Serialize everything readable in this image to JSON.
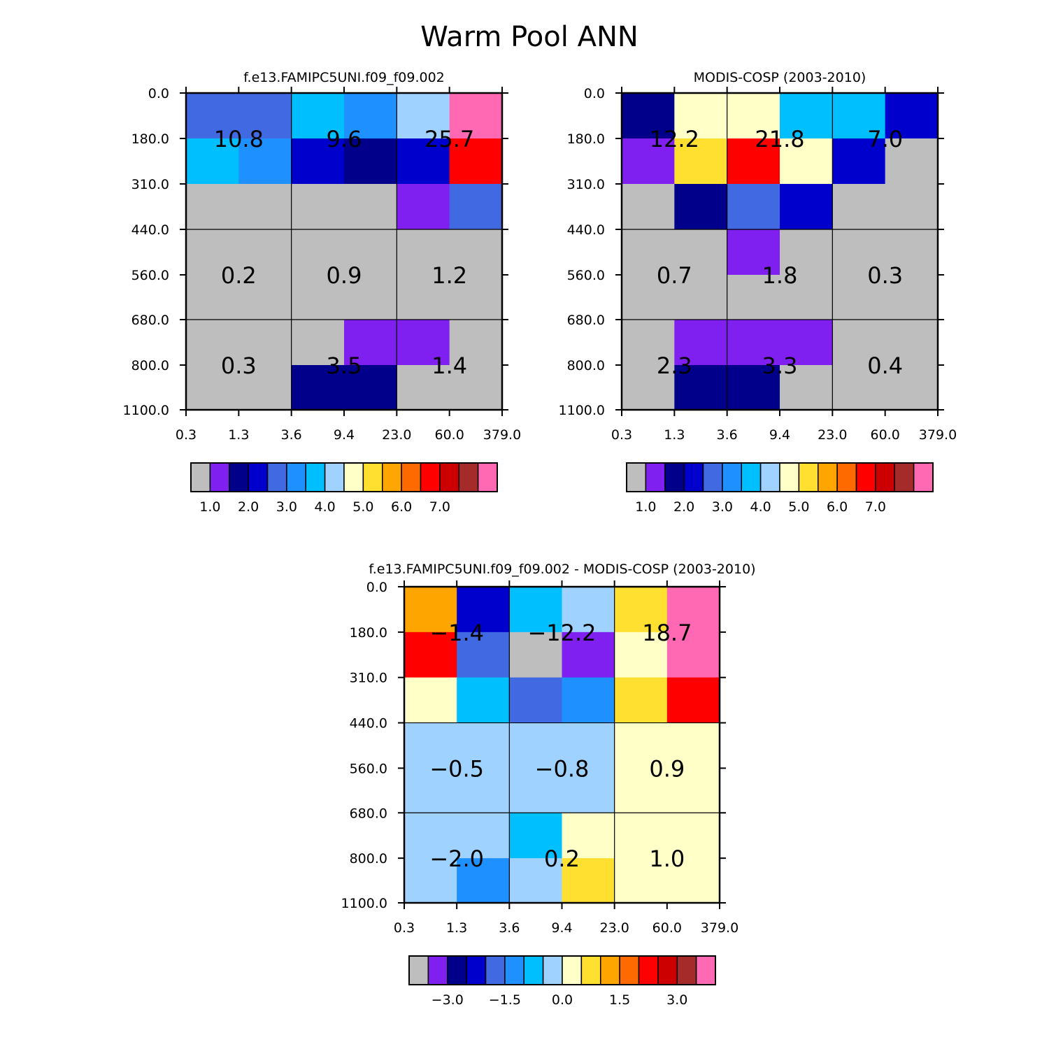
{
  "title": "Warm Pool ANN",
  "palette": [
    "#bebebe",
    "#8020f0",
    "#00008b",
    "#0000cd",
    "#4169e1",
    "#1e90ff",
    "#00bfff",
    "#a0d2ff",
    "#ffffc8",
    "#ffe030",
    "#ffa500",
    "#ff6a00",
    "#ff0000",
    "#cd0000",
    "#a52a2a",
    "#ff69b4"
  ],
  "chart_data": [
    {
      "type": "heatmap",
      "title": "f.e13.FAMIPC5UNI.f09_f09.002",
      "x_ticks": [
        "0.3",
        "1.3",
        "3.6",
        "9.4",
        "23.0",
        "60.0",
        "379.0"
      ],
      "y_ticks": [
        "0.0",
        "180.0",
        "310.0",
        "440.0",
        "560.0",
        "680.0",
        "800.0",
        "1100.0"
      ],
      "cells": [
        [
          4,
          4,
          6,
          5,
          7,
          15
        ],
        [
          6,
          5,
          3,
          2,
          3,
          12
        ],
        [
          0,
          0,
          0,
          0,
          1,
          4
        ],
        [
          0,
          0,
          0,
          0,
          0,
          0
        ],
        [
          0,
          0,
          0,
          0,
          0,
          0
        ],
        [
          0,
          0,
          0,
          1,
          1,
          0
        ],
        [
          0,
          0,
          2,
          2,
          0,
          0
        ]
      ],
      "group_totals": [
        [
          "10.8",
          "9.6",
          "25.7"
        ],
        [
          "0.2",
          "0.9",
          "1.2"
        ],
        [
          "0.3",
          "3.5",
          "1.4"
        ]
      ],
      "colorbar_labels": [
        "1.0",
        "2.0",
        "3.0",
        "4.0",
        "5.0",
        "6.0",
        "7.0"
      ]
    },
    {
      "type": "heatmap",
      "title": "MODIS-COSP (2003-2010)",
      "x_ticks": [
        "0.3",
        "1.3",
        "3.6",
        "9.4",
        "23.0",
        "60.0",
        "379.0"
      ],
      "y_ticks": [
        "0.0",
        "180.0",
        "310.0",
        "440.0",
        "560.0",
        "680.0",
        "800.0",
        "1100.0"
      ],
      "cells": [
        [
          2,
          8,
          8,
          6,
          6,
          3
        ],
        [
          1,
          9,
          12,
          8,
          3,
          0
        ],
        [
          0,
          2,
          4,
          3,
          0,
          0
        ],
        [
          0,
          0,
          1,
          0,
          0,
          0
        ],
        [
          0,
          0,
          0,
          0,
          0,
          0
        ],
        [
          0,
          1,
          1,
          1,
          0,
          0
        ],
        [
          0,
          2,
          2,
          0,
          0,
          0
        ]
      ],
      "group_totals": [
        [
          "12.2",
          "21.8",
          "7.0"
        ],
        [
          "0.7",
          "1.8",
          "0.3"
        ],
        [
          "2.3",
          "3.3",
          "0.4"
        ]
      ],
      "colorbar_labels": [
        "1.0",
        "2.0",
        "3.0",
        "4.0",
        "5.0",
        "6.0",
        "7.0"
      ]
    },
    {
      "type": "heatmap",
      "title": "f.e13.FAMIPC5UNI.f09_f09.002 - MODIS-COSP (2003-2010)",
      "x_ticks": [
        "0.3",
        "1.3",
        "3.6",
        "9.4",
        "23.0",
        "60.0",
        "379.0"
      ],
      "y_ticks": [
        "0.0",
        "180.0",
        "310.0",
        "440.0",
        "560.0",
        "680.0",
        "800.0",
        "1100.0"
      ],
      "cells": [
        [
          10,
          3,
          6,
          7,
          9,
          15
        ],
        [
          12,
          4,
          0,
          1,
          8,
          15
        ],
        [
          8,
          6,
          4,
          5,
          9,
          12
        ],
        [
          7,
          7,
          7,
          7,
          8,
          8
        ],
        [
          7,
          7,
          7,
          7,
          8,
          8
        ],
        [
          7,
          7,
          6,
          8,
          8,
          8
        ],
        [
          7,
          5,
          7,
          9,
          8,
          8
        ]
      ],
      "group_totals": [
        [
          "-1.4",
          "-12.2",
          "18.7"
        ],
        [
          "-0.5",
          "-0.8",
          "0.9"
        ],
        [
          "-2.0",
          "0.2",
          "1.0"
        ]
      ],
      "colorbar_labels": [
        "-3.0",
        "-1.5",
        "0.0",
        "1.5",
        "3.0"
      ]
    }
  ]
}
